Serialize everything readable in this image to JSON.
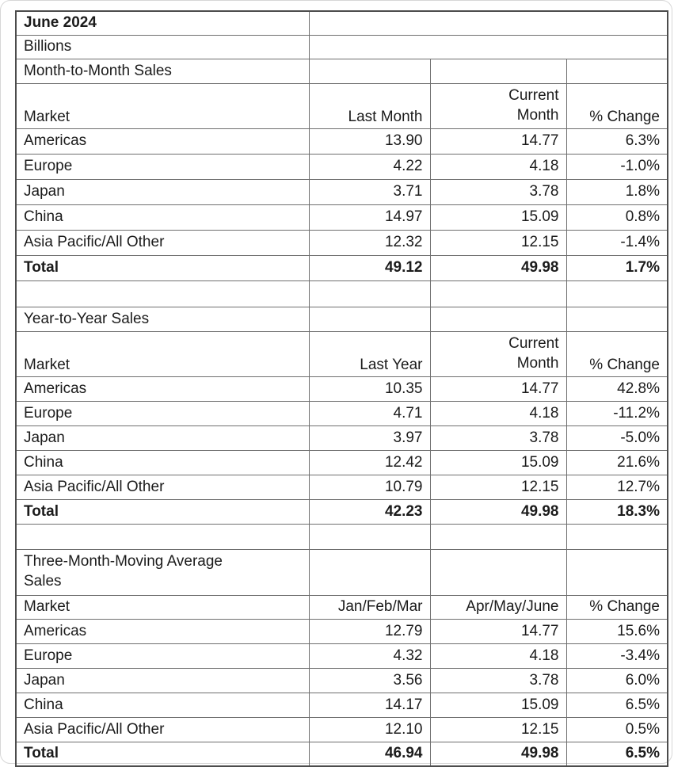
{
  "report": {
    "title": "June 2024",
    "unit": "Billions"
  },
  "sections": [
    {
      "title": "Month-to-Month Sales",
      "market_label": "Market",
      "col1": "Last Month",
      "col2": "Current\nMonth",
      "col3": "% Change",
      "rows": [
        {
          "market": "Americas",
          "v1": "13.90",
          "v2": "14.77",
          "pct": "6.3%"
        },
        {
          "market": "Europe",
          "v1": "4.22",
          "v2": "4.18",
          "pct": "-1.0%"
        },
        {
          "market": "Japan",
          "v1": "3.71",
          "v2": "3.78",
          "pct": "1.8%"
        },
        {
          "market": "China",
          "v1": "14.97",
          "v2": "15.09",
          "pct": "0.8%"
        },
        {
          "market": "Asia Pacific/All Other",
          "v1": "12.32",
          "v2": "12.15",
          "pct": "-1.4%"
        }
      ],
      "total": {
        "market": "Total",
        "v1": "49.12",
        "v2": "49.98",
        "pct": "1.7%"
      }
    },
    {
      "title": "Year-to-Year Sales",
      "market_label": "Market",
      "col1": "Last Year",
      "col2": "Current\nMonth",
      "col3": "% Change",
      "rows": [
        {
          "market": "Americas",
          "v1": "10.35",
          "v2": "14.77",
          "pct": "42.8%"
        },
        {
          "market": "Europe",
          "v1": "4.71",
          "v2": "4.18",
          "pct": "-11.2%"
        },
        {
          "market": "Japan",
          "v1": "3.97",
          "v2": "3.78",
          "pct": "-5.0%"
        },
        {
          "market": "China",
          "v1": "12.42",
          "v2": "15.09",
          "pct": "21.6%"
        },
        {
          "market": "Asia Pacific/All Other",
          "v1": "10.79",
          "v2": "12.15",
          "pct": "12.7%"
        }
      ],
      "total": {
        "market": "Total",
        "v1": "42.23",
        "v2": "49.98",
        "pct": "18.3%"
      }
    },
    {
      "title": "Three-Month-Moving Average\nSales",
      "market_label": "Market",
      "col1": "Jan/Feb/Mar",
      "col2": "Apr/May/June",
      "col3": "% Change",
      "rows": [
        {
          "market": "Americas",
          "v1": "12.79",
          "v2": "14.77",
          "pct": "15.6%"
        },
        {
          "market": "Europe",
          "v1": "4.32",
          "v2": "4.18",
          "pct": "-3.4%"
        },
        {
          "market": "Japan",
          "v1": "3.56",
          "v2": "3.78",
          "pct": "6.0%"
        },
        {
          "market": "China",
          "v1": "14.17",
          "v2": "15.09",
          "pct": "6.5%"
        },
        {
          "market": "Asia Pacific/All Other",
          "v1": "12.10",
          "v2": "12.15",
          "pct": "0.5%"
        }
      ],
      "total": {
        "market": "Total",
        "v1": "46.94",
        "v2": "49.98",
        "pct": "6.5%"
      }
    }
  ],
  "chart_data": [
    {
      "type": "table",
      "title": "Month-to-Month Sales",
      "subtitle": "June 2024",
      "unit": "Billions",
      "columns": [
        "Market",
        "Last Month",
        "Current Month",
        "% Change"
      ],
      "rows": [
        [
          "Americas",
          13.9,
          14.77,
          "6.3%"
        ],
        [
          "Europe",
          4.22,
          4.18,
          "-1.0%"
        ],
        [
          "Japan",
          3.71,
          3.78,
          "1.8%"
        ],
        [
          "China",
          14.97,
          15.09,
          "0.8%"
        ],
        [
          "Asia Pacific/All Other",
          12.32,
          12.15,
          "-1.4%"
        ],
        [
          "Total",
          49.12,
          49.98,
          "1.7%"
        ]
      ]
    },
    {
      "type": "table",
      "title": "Year-to-Year Sales",
      "subtitle": "June 2024",
      "unit": "Billions",
      "columns": [
        "Market",
        "Last Year",
        "Current Month",
        "% Change"
      ],
      "rows": [
        [
          "Americas",
          10.35,
          14.77,
          "42.8%"
        ],
        [
          "Europe",
          4.71,
          4.18,
          "-11.2%"
        ],
        [
          "Japan",
          3.97,
          3.78,
          "-5.0%"
        ],
        [
          "China",
          12.42,
          15.09,
          "21.6%"
        ],
        [
          "Asia Pacific/All Other",
          10.79,
          12.15,
          "12.7%"
        ],
        [
          "Total",
          42.23,
          49.98,
          "18.3%"
        ]
      ]
    },
    {
      "type": "table",
      "title": "Three-Month-Moving Average Sales",
      "subtitle": "June 2024",
      "unit": "Billions",
      "columns": [
        "Market",
        "Jan/Feb/Mar",
        "Apr/May/June",
        "% Change"
      ],
      "rows": [
        [
          "Americas",
          12.79,
          14.77,
          "15.6%"
        ],
        [
          "Europe",
          4.32,
          4.18,
          "-3.4%"
        ],
        [
          "Japan",
          3.56,
          3.78,
          "6.0%"
        ],
        [
          "China",
          14.17,
          15.09,
          "6.5%"
        ],
        [
          "Asia Pacific/All Other",
          12.1,
          12.15,
          "0.5%"
        ],
        [
          "Total",
          46.94,
          49.98,
          "6.5%"
        ]
      ]
    }
  ]
}
